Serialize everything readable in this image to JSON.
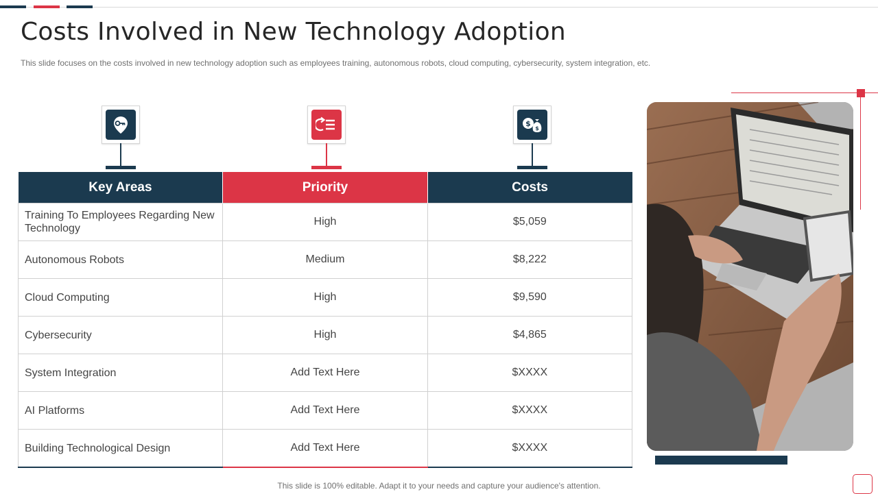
{
  "colors": {
    "navy": "#1b3a4f",
    "red": "#dc3546",
    "text": "#444444",
    "border": "#d0d0d0"
  },
  "header": {
    "title": "Costs Involved in New Technology Adoption",
    "subtitle": "This slide focuses on the costs involved in new technology adoption such as employees training, autonomous robots, cloud computing, cybersecurity, system integration, etc."
  },
  "icons": [
    "key-location-icon",
    "refresh-list-icon",
    "money-bags-icon"
  ],
  "table": {
    "headers": [
      "Key Areas",
      "Priority",
      "Costs"
    ],
    "rows": [
      {
        "area": "Training To Employees Regarding New Technology",
        "priority": "High",
        "cost": "$5,059"
      },
      {
        "area": "Autonomous Robots",
        "priority": "Medium",
        "cost": "$8,222"
      },
      {
        "area": "Cloud Computing",
        "priority": "High",
        "cost": "$9,590"
      },
      {
        "area": "Cybersecurity",
        "priority": "High",
        "cost": "$4,865"
      },
      {
        "area": "System Integration",
        "priority": "Add Text Here",
        "cost": "$XXXX"
      },
      {
        "area": "AI Platforms",
        "priority": "Add Text Here",
        "cost": "$XXXX"
      },
      {
        "area": "Building Technological Design",
        "priority": "Add Text Here",
        "cost": "$XXXX"
      }
    ]
  },
  "footer": "This slide is 100% editable. Adapt it to your needs and capture your audience's attention."
}
